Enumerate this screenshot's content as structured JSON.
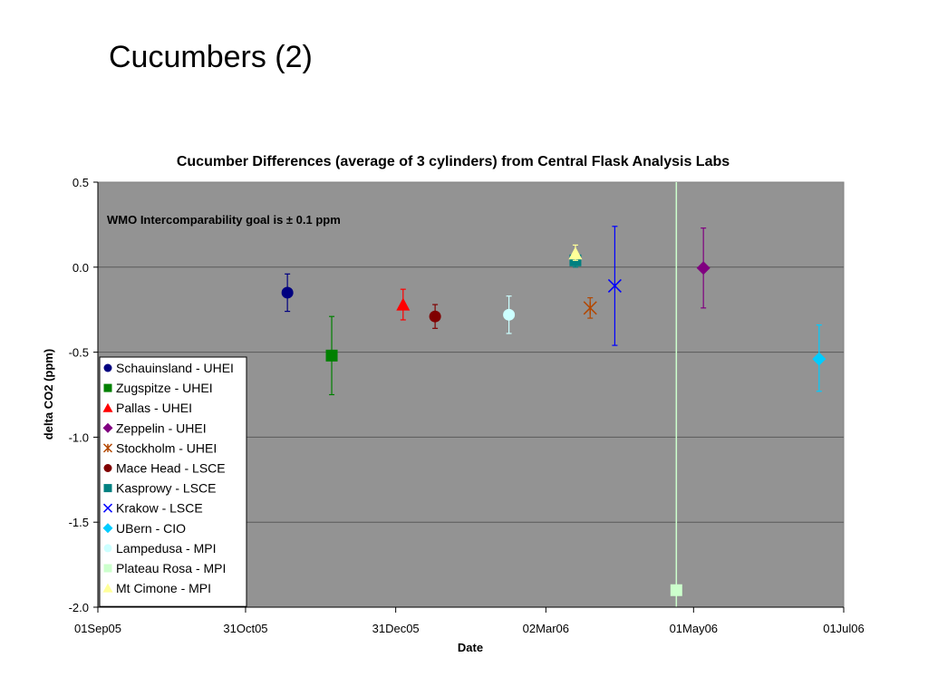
{
  "slide": {
    "title": "Cucumbers (2)"
  },
  "chart_data": {
    "type": "scatter",
    "title": "Cucumber Differences (average of 3 cylinders) from Central Flask Analysis Labs",
    "xlabel": "Date",
    "ylabel": "delta CO2 (ppm)",
    "annotation": "WMO Intercomparability goal is ± 0.1 ppm",
    "x_axis": {
      "type": "date",
      "range": [
        "2005-09-01",
        "2006-07-01"
      ],
      "ticks": [
        {
          "date": "2005-09-01",
          "label": "01Sep05"
        },
        {
          "date": "2005-10-31",
          "label": "31Oct05"
        },
        {
          "date": "2005-12-31",
          "label": "31Dec05"
        },
        {
          "date": "2006-03-02",
          "label": "02Mar06"
        },
        {
          "date": "2006-05-01",
          "label": "01May06"
        },
        {
          "date": "2006-07-01",
          "label": "01Jul06"
        }
      ]
    },
    "ylim": [
      -2.0,
      0.5
    ],
    "y_ticks": [
      {
        "value": 0.5,
        "label": "0.5"
      },
      {
        "value": 0.0,
        "label": "0.0"
      },
      {
        "value": -0.5,
        "label": "-0.5"
      },
      {
        "value": -1.0,
        "label": "-1.0"
      },
      {
        "value": -1.5,
        "label": "-1.5"
      },
      {
        "value": -2.0,
        "label": "-2.0"
      }
    ],
    "grid": {
      "horizontal": true,
      "vertical": false
    },
    "plot_background": "#939393",
    "reference_line": {
      "date": "2006-04-24",
      "color": "#ccffcc"
    },
    "legend": {
      "position": "bottom-left"
    },
    "series": [
      {
        "name": "Schauinsland - UHEI",
        "marker": "circle",
        "color": "#000080",
        "date": "2005-11-17",
        "y": -0.15,
        "err_low": -0.26,
        "err_high": -0.04
      },
      {
        "name": "Zugspitze - UHEI",
        "marker": "square",
        "color": "#008000",
        "date": "2005-12-05",
        "y": -0.52,
        "err_low": -0.75,
        "err_high": -0.29
      },
      {
        "name": "Pallas - UHEI",
        "marker": "triangle",
        "color": "#ff0000",
        "date": "2006-01-03",
        "y": -0.22,
        "err_low": -0.31,
        "err_high": -0.13
      },
      {
        "name": "Zeppelin - UHEI",
        "marker": "diamond",
        "color": "#800080",
        "date": "2006-05-05",
        "y": -0.005,
        "err_low": -0.24,
        "err_high": 0.23
      },
      {
        "name": "Stockholm - UHEI",
        "marker": "asterisk",
        "color": "#b34700",
        "date": "2006-03-20",
        "y": -0.24,
        "err_low": -0.3,
        "err_high": -0.18
      },
      {
        "name": "Mace Head - LSCE",
        "marker": "circle",
        "color": "#800000",
        "date": "2006-01-16",
        "y": -0.29,
        "err_low": -0.36,
        "err_high": -0.22
      },
      {
        "name": "Kasprowy - LSCE",
        "marker": "square",
        "color": "#008080",
        "date": "2006-03-14",
        "y": 0.04,
        "err_low": 0.0,
        "err_high": 0.08
      },
      {
        "name": "Krakow - LSCE",
        "marker": "x",
        "color": "#0000ff",
        "date": "2006-03-30",
        "y": -0.11,
        "err_low": -0.46,
        "err_high": 0.24
      },
      {
        "name": "UBern - CIO",
        "marker": "diamond",
        "color": "#00ccff",
        "date": "2006-06-21",
        "y": -0.54,
        "err_low": -0.73,
        "err_high": -0.34
      },
      {
        "name": "Lampedusa - MPI",
        "marker": "circle",
        "color": "#ccffff",
        "date": "2006-02-15",
        "y": -0.28,
        "err_low": -0.39,
        "err_high": -0.17
      },
      {
        "name": "Plateau Rosa - MPI",
        "marker": "square",
        "color": "#ccffcc",
        "date": "2006-04-24",
        "y": -1.9
      },
      {
        "name": "Mt Cimone - MPI",
        "marker": "triangle",
        "color": "#ffff99",
        "date": "2006-03-14",
        "y": 0.08,
        "err_low": 0.04,
        "err_high": 0.13
      }
    ]
  }
}
